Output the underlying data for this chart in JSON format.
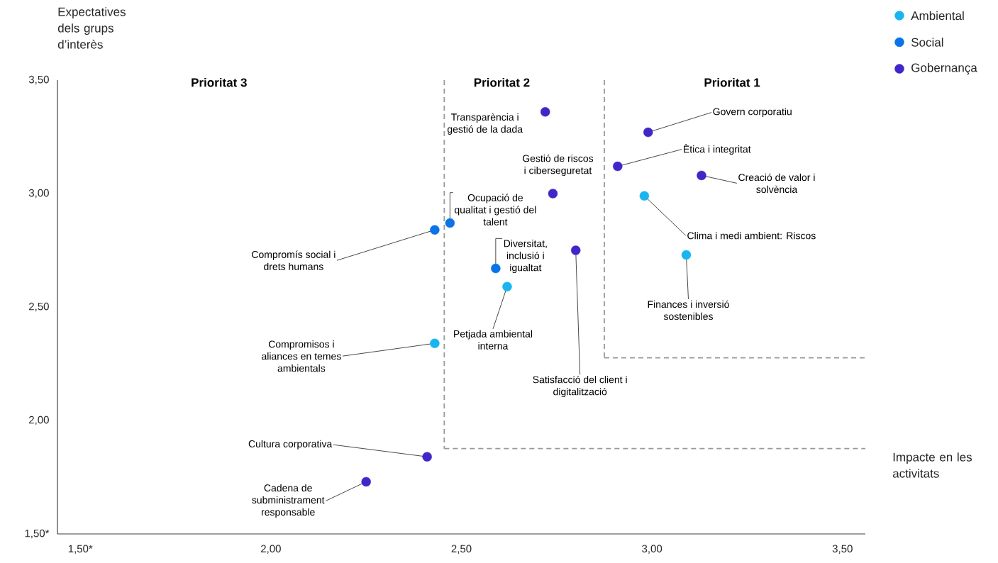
{
  "chart_data": {
    "type": "scatter",
    "ylabel": "Expectatives dels grups d’interès",
    "xlabel": "Impacte en les activitats",
    "xlim": [
      1.44,
      3.56
    ],
    "ylim": [
      1.5,
      3.5
    ],
    "xticks": [
      {
        "value": 1.5,
        "label": "1,50*"
      },
      {
        "value": 2,
        "label": "2,00"
      },
      {
        "value": 2.5,
        "label": "2,50"
      },
      {
        "value": 3,
        "label": "3,00"
      },
      {
        "value": 3.5,
        "label": "3,50"
      }
    ],
    "yticks": [
      {
        "value": 1.5,
        "label": "1,50*"
      },
      {
        "value": 2,
        "label": "2,00"
      },
      {
        "value": 2.5,
        "label": "2,50"
      },
      {
        "value": 3,
        "label": "3,00"
      },
      {
        "value": 3.5,
        "label": "3,50"
      }
    ],
    "series": [
      {
        "name": "Ambiental",
        "color": "#19b5f0",
        "x": [
          2.98,
          3.09,
          2.62,
          2.43
        ],
        "values": [
          2.99,
          2.73,
          2.59,
          2.34
        ]
      },
      {
        "name": "Social",
        "color": "#0a73e6",
        "x": [
          2.47,
          2.43,
          2.59
        ],
        "values": [
          2.87,
          2.84,
          2.67
        ]
      },
      {
        "name": "Gobernança",
        "color": "#3f27c8",
        "x": [
          2.72,
          2.99,
          2.91,
          3.13,
          2.74,
          2.8,
          2.41,
          2.25
        ],
        "values": [
          3.36,
          3.27,
          3.12,
          3.08,
          3.0,
          2.75,
          1.84,
          1.73
        ]
      }
    ],
    "ref_lines": [
      {
        "axis": "x",
        "value": 2.455,
        "label": null,
        "color": "#999999",
        "line_style": "dashed"
      },
      {
        "axis": "y",
        "value": 1.876,
        "label": null,
        "color": "#999999",
        "line_style": "dashed"
      },
      {
        "axis": "x",
        "value": 2.875,
        "label": null,
        "color": "#999999",
        "line_style": "dashed"
      },
      {
        "axis": "y",
        "value": 2.276,
        "label": null,
        "color": "#999999",
        "line_style": "dashed"
      }
    ],
    "annotations": [
      "Prioritat 3",
      "Prioritat 2",
      "Prioritat 1",
      {
        "text": "Clima i medi ambient: Riscos",
        "x": 2.98,
        "y": 2.99
      },
      {
        "text": "Finances i inversió sostenibles",
        "x": 3.09,
        "y": 2.73
      },
      {
        "text": "Petjada ambiental interna",
        "x": 2.62,
        "y": 2.59
      },
      {
        "text": "Compromisos i aliances en temes ambientals",
        "x": 2.43,
        "y": 2.34
      },
      {
        "text": "Ocupació de qualitat i gestió del talent",
        "x": 2.47,
        "y": 2.87
      },
      {
        "text": "Compromís social i drets humans",
        "x": 2.43,
        "y": 2.84
      },
      {
        "text": "Diversitat, inclusió i igualtat",
        "x": 2.59,
        "y": 2.67
      },
      {
        "text": "Transparència i gestió de la dada",
        "x": 2.72,
        "y": 3.36
      },
      {
        "text": "Govern corporatiu",
        "x": 2.99,
        "y": 3.27
      },
      {
        "text": "Ètica i integritat",
        "x": 2.91,
        "y": 3.12
      },
      {
        "text": "Creació de valor i solvència",
        "x": 3.13,
        "y": 3.08
      },
      {
        "text": "Gestió de riscos i ciberseguretat",
        "x": 2.74,
        "y": 3.0
      },
      {
        "text": "Satisfacció del client i digitalització",
        "x": 2.8,
        "y": 2.75
      },
      {
        "text": "Cultura corporativa",
        "x": 2.41,
        "y": 1.84
      },
      {
        "text": "Cadena de subministrament responsable",
        "x": 2.25,
        "y": 1.73
      }
    ],
    "grid": false,
    "marker": "circle",
    "legend": "top right"
  }
}
